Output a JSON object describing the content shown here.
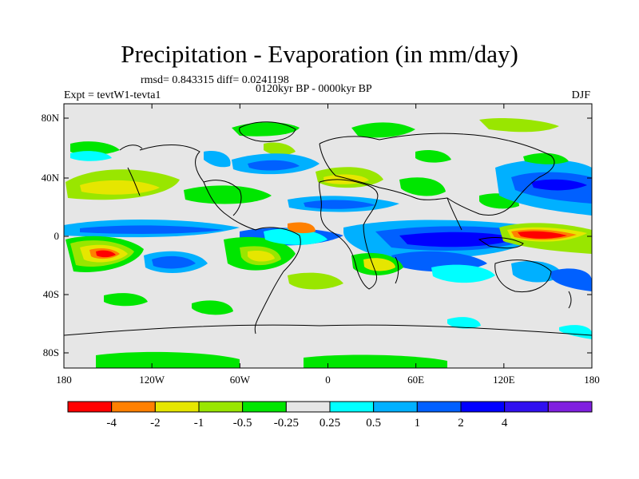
{
  "title": "Precipitation - Evaporation (in mm/day)",
  "stats": "rmsd= 0.843315 diff= 0.0241198",
  "experiment": "Expt = tevtW1-tevta1",
  "period": "0120kyr BP - 0000kyr BP",
  "season": "DJF",
  "lat_labels": [
    "80N",
    "40N",
    "0",
    "40S",
    "80S"
  ],
  "lon_labels": [
    "180",
    "120W",
    "60W",
    "0",
    "60E",
    "120E",
    "180"
  ],
  "colorbar": {
    "colors": [
      "#ff0000",
      "#ff8000",
      "#e6e600",
      "#99e600",
      "#00e600",
      "#e6e6e6",
      "#00ffff",
      "#00b0ff",
      "#0060ff",
      "#0000ff",
      "#3010f0",
      "#8020e0"
    ],
    "labels": [
      "-4",
      "-2",
      "-1",
      "-0.5",
      "-0.25",
      "0.25",
      "0.5",
      "1",
      "2",
      "4"
    ]
  },
  "colors": {
    "background": "#e6e6e6",
    "coast": "#000000"
  }
}
